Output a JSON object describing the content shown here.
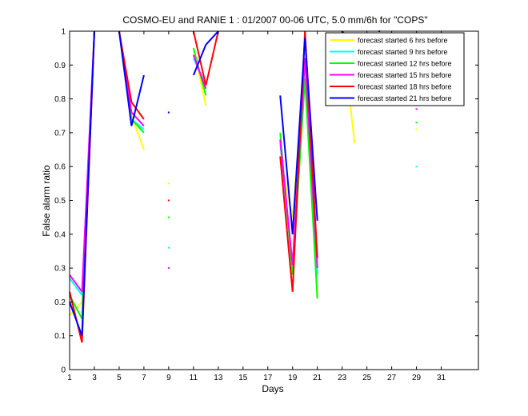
{
  "chart_data": {
    "type": "line",
    "title": "COSMO-EU and RANIE 1 : 01/2007 00-06 UTC, 5.0 mm/6h for \"COPS\"",
    "xlabel": "Days",
    "ylabel": "False alarm ratio",
    "xlim": [
      1,
      31
    ],
    "ylim": [
      0,
      1
    ],
    "x_ticks": [
      1,
      3,
      5,
      7,
      9,
      11,
      13,
      15,
      17,
      19,
      21,
      23,
      25,
      27,
      29,
      31
    ],
    "x_tick_labels": [
      "1",
      "3",
      "5",
      "7",
      "9",
      "11",
      "13",
      "15",
      "17",
      "19",
      "21",
      "23",
      "25",
      "27",
      "29",
      "31"
    ],
    "y_ticks": [
      0,
      0.1,
      0.2,
      0.3,
      0.4,
      0.5,
      0.6,
      0.7,
      0.8,
      0.9,
      1
    ],
    "y_tick_labels": [
      "0",
      "0.1",
      "0.2",
      "0.3",
      "0.4",
      "0.5",
      "0.6",
      "0.7",
      "0.8",
      "0.9",
      "1"
    ],
    "grid": false,
    "legend_position": "top-right",
    "series": [
      {
        "name": "forecast started 6 hrs before",
        "color": "#ffff00",
        "values": [
          0.16,
          0.2,
          1.0,
          null,
          1.0,
          0.75,
          0.65,
          null,
          0.55,
          null,
          0.95,
          0.78,
          null,
          null,
          null,
          null,
          null,
          0.62,
          0.45,
          0.9,
          0.22,
          null,
          1.0,
          0.67,
          null,
          null,
          null,
          null,
          0.71,
          null,
          null
        ]
      },
      {
        "name": "forecast started 9 hrs before",
        "color": "#00ffff",
        "values": [
          0.27,
          0.22,
          1.0,
          null,
          1.0,
          0.74,
          0.71,
          null,
          0.36,
          null,
          0.92,
          0.84,
          null,
          null,
          null,
          null,
          null,
          0.67,
          0.3,
          0.92,
          0.28,
          null,
          1.0,
          0.92,
          null,
          null,
          null,
          null,
          0.6,
          null,
          null
        ]
      },
      {
        "name": "forecast started 12 hrs before",
        "color": "#00ff00",
        "values": [
          0.22,
          0.15,
          1.0,
          null,
          1.0,
          0.74,
          0.7,
          null,
          0.45,
          null,
          0.95,
          0.81,
          null,
          null,
          null,
          null,
          null,
          0.7,
          0.28,
          0.86,
          0.21,
          null,
          1.0,
          0.88,
          null,
          null,
          null,
          null,
          0.73,
          null,
          null
        ]
      },
      {
        "name": "forecast started 15 hrs before",
        "color": "#ff00ff",
        "values": [
          0.28,
          0.23,
          1.0,
          null,
          1.0,
          0.76,
          0.72,
          null,
          0.3,
          null,
          0.93,
          0.83,
          null,
          null,
          null,
          null,
          null,
          0.68,
          0.31,
          0.92,
          0.3,
          null,
          1.0,
          0.95,
          null,
          null,
          null,
          null,
          0.77,
          null,
          null
        ]
      },
      {
        "name": "forecast started 18 hrs before",
        "color": "#ff0000",
        "values": [
          0.23,
          0.08,
          1.0,
          null,
          1.0,
          0.79,
          0.74,
          null,
          0.5,
          null,
          1.0,
          0.84,
          1.0,
          null,
          null,
          null,
          null,
          0.63,
          0.23,
          1.0,
          0.33,
          null,
          1.0,
          0.96,
          null,
          null,
          null,
          null,
          0.82,
          null,
          null
        ]
      },
      {
        "name": "forecast started 21 hrs before",
        "color": "#0000ff",
        "values": [
          0.2,
          0.1,
          1.0,
          null,
          1.0,
          0.72,
          0.87,
          null,
          0.76,
          null,
          0.87,
          0.96,
          1.0,
          null,
          null,
          null,
          null,
          0.81,
          0.4,
          0.98,
          0.44,
          null,
          1.0,
          0.8,
          null,
          1.0,
          null,
          null,
          0.88,
          null,
          null
        ]
      }
    ]
  }
}
